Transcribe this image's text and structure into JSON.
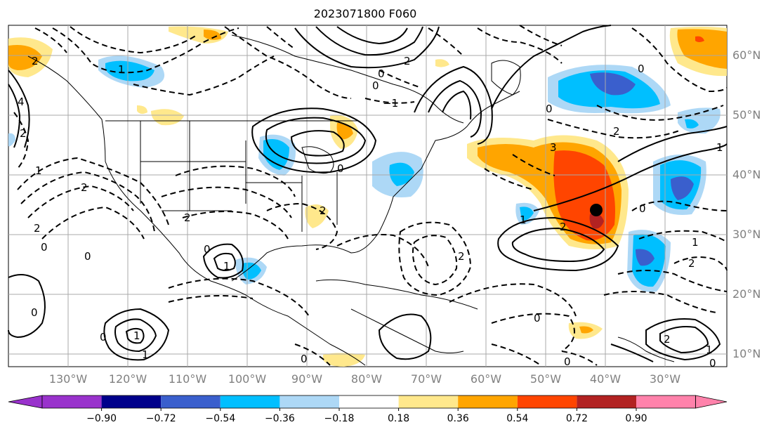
{
  "title": "2023071800 F060",
  "lon_labels": [
    "130°W",
    "120°W",
    "110°W",
    "100°W",
    "90°W",
    "80°W",
    "70°W",
    "60°W",
    "50°W",
    "40°W",
    "30°W"
  ],
  "lat_labels": [
    "60°N",
    "50°N",
    "40°N",
    "30°N",
    "20°N",
    "10°N"
  ],
  "colorbar": {
    "ticks": [
      "−0.90",
      "−0.72",
      "−0.54",
      "−0.36",
      "−0.18",
      "0.18",
      "0.36",
      "0.54",
      "0.72",
      "0.90"
    ],
    "colors": [
      "#9932cc",
      "#00008b",
      "#3a5fcd",
      "#00bfff",
      "#add8f6",
      "#ffffff",
      "#ffe88c",
      "#ffa500",
      "#ff4500",
      "#b22222",
      "#ff82ab"
    ]
  },
  "colors": {
    "negative_strong": "#3a5fcd",
    "negative_mid": "#00bfff",
    "negative_weak": "#add8f6",
    "positive_weak": "#ffe88c",
    "positive_mid": "#ffa500",
    "positive_strong": "#ff4500",
    "positive_max": "#b22222",
    "grid": "#a9a9a9",
    "coast": "#000000"
  },
  "contour_labels": [
    "0",
    "1",
    "2",
    "3",
    "4",
    "−1",
    "−2"
  ],
  "marker": {
    "type": "black-dot",
    "lon": "42°W",
    "lat": "34°N"
  }
}
